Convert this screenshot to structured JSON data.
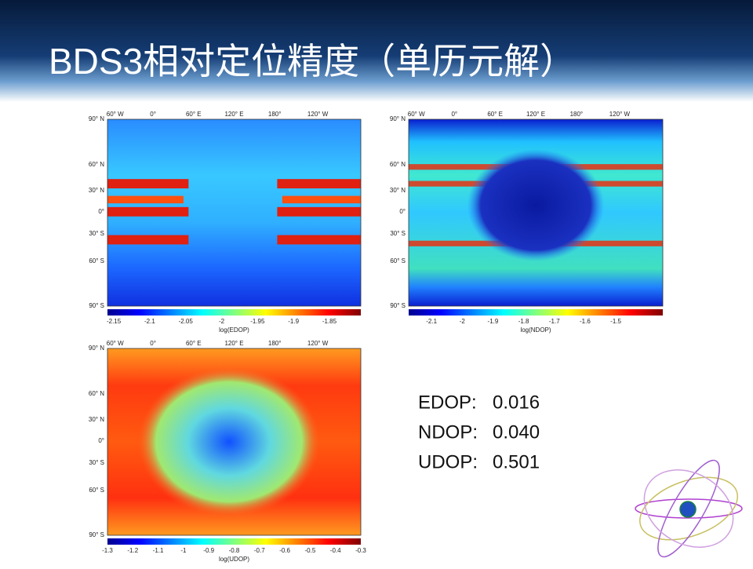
{
  "header": {
    "title": "BDS3相对定位精度（单历元解）"
  },
  "lon_labels": [
    "60° W",
    "0°",
    "60° E",
    "120° E",
    "180°",
    "120° W"
  ],
  "lat_labels": [
    "90° N",
    "60° N",
    "30° N",
    "0°",
    "30° S",
    "60° S",
    "90° S"
  ],
  "maps": [
    {
      "colorbar_ticks": [
        "-2.15",
        "-2.1",
        "-2.05",
        "-2",
        "-1.95",
        "-1.9",
        "-1.85"
      ],
      "colorbar_label": "log(EDOP)"
    },
    {
      "colorbar_ticks": [
        "-2.1",
        "-2",
        "-1.9",
        "-1.8",
        "-1.7",
        "-1.6",
        "-1.5"
      ],
      "colorbar_label": "log(NDOP)"
    },
    {
      "colorbar_ticks": [
        "-1.3",
        "-1.2",
        "-1.1",
        "-1",
        "-0.9",
        "-0.8",
        "-0.7",
        "-0.6",
        "-0.5",
        "-0.4",
        "-0.3"
      ],
      "colorbar_label": "log(UDOP)"
    }
  ],
  "stats": [
    {
      "label": "EDOP:",
      "value": "0.016"
    },
    {
      "label": "NDOP:",
      "value": "0.040"
    },
    {
      "label": "UDOP:",
      "value": "0.501"
    }
  ]
}
